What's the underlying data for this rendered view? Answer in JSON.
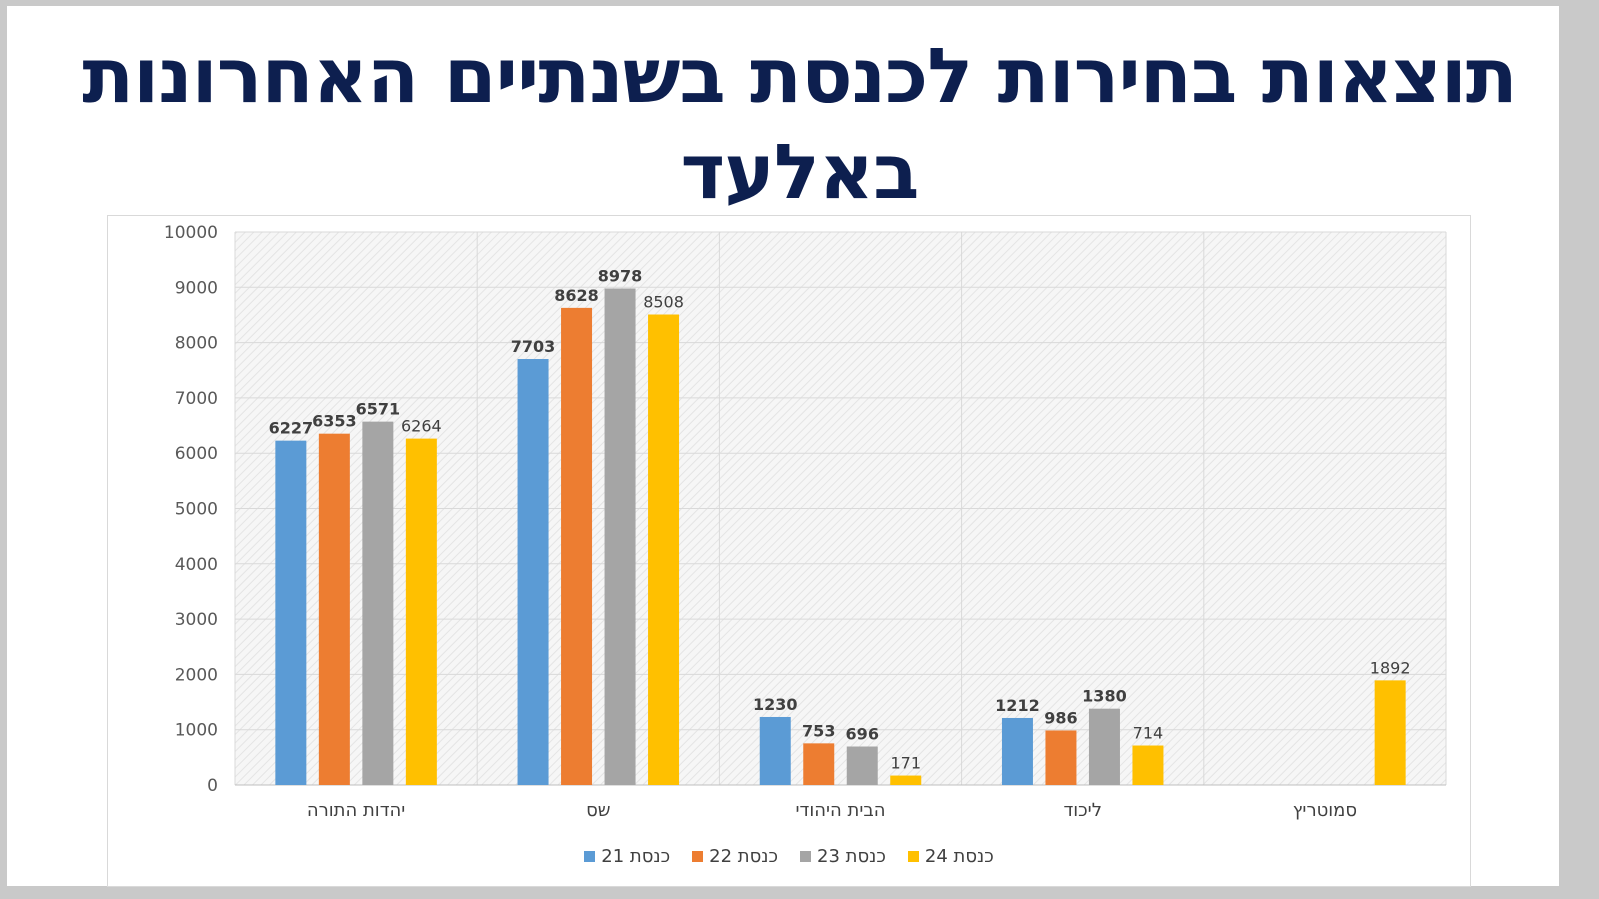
{
  "title": "תוצאות בחירות לכנסת בשנתיים האחרונות באלעד",
  "chart_data": {
    "type": "bar",
    "categories": [
      "יהדות התורה",
      "שס",
      "הבית היהודי",
      "ליכוד",
      "סמוטריץ"
    ],
    "ylim": [
      0,
      10000
    ],
    "yticks": [
      0,
      1000,
      2000,
      3000,
      4000,
      5000,
      6000,
      7000,
      8000,
      9000,
      10000
    ],
    "grid": true,
    "legend_position": "bottom",
    "series": [
      {
        "name": "כנסת 21",
        "color": "#5b9bd5",
        "values": [
          6227,
          7703,
          1230,
          1212,
          null
        ],
        "bold_labels": true
      },
      {
        "name": "כנסת 22",
        "color": "#ed7d31",
        "values": [
          6353,
          8628,
          753,
          986,
          null
        ],
        "bold_labels": true
      },
      {
        "name": "כנסת 23",
        "color": "#a5a5a5",
        "values": [
          6571,
          8978,
          696,
          1380,
          null
        ],
        "bold_labels": true
      },
      {
        "name": "כנסת 24",
        "color": "#ffc000",
        "values": [
          6264,
          8508,
          171,
          714,
          1892
        ],
        "bold_labels": false
      }
    ]
  }
}
